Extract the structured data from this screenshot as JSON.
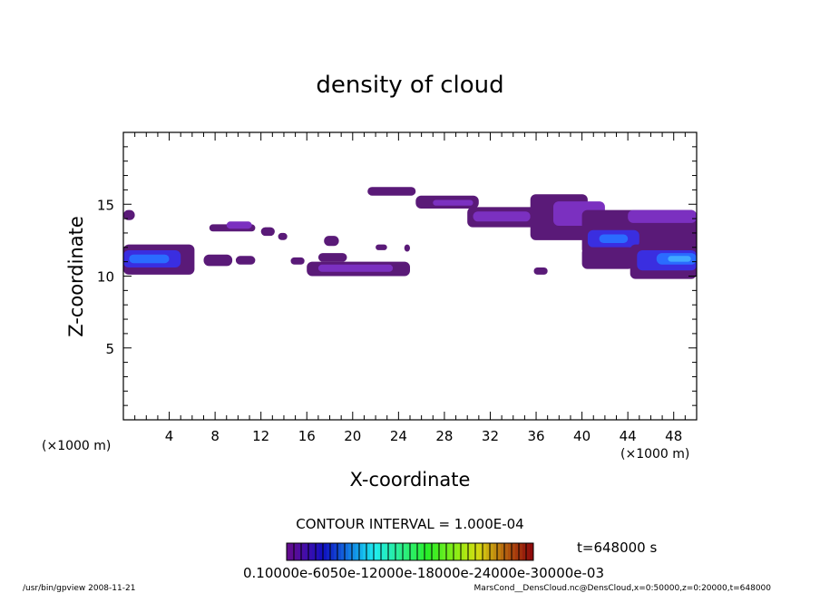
{
  "chart_data": {
    "type": "heatmap",
    "title": "density of cloud",
    "xlabel": "X-coordinate",
    "ylabel": "Z-coordinate",
    "x_unit_left": "(×1000 m)",
    "x_unit_right": "(×1000 m)",
    "xlim": [
      0,
      50
    ],
    "ylim": [
      0,
      20
    ],
    "x_ticks": [
      4,
      8,
      12,
      16,
      20,
      24,
      28,
      32,
      36,
      40,
      44,
      48
    ],
    "y_ticks": [
      5,
      10,
      15
    ],
    "contour_interval": "CONTOUR INTERVAL = 1.000E-04",
    "time_label": "t=648000 s",
    "colorbar_labels_overlapping": "0.10000e-6050e-12000e-18000e-24000e-30000e-03",
    "colors": {
      "low": "#5a1a78",
      "mid": "#7b30c0",
      "high": "#3a2ee0",
      "peak": "#2a6cff",
      "max": "#40a8ff"
    },
    "regions": [
      {
        "x0": 0,
        "x1": 1.0,
        "z0": 13.9,
        "z1": 14.6,
        "level": "low"
      },
      {
        "x0": 0,
        "x1": 6.2,
        "z0": 10.1,
        "z1": 12.2,
        "level": "low"
      },
      {
        "x0": 0,
        "x1": 5.0,
        "z0": 10.6,
        "z1": 11.8,
        "level": "high"
      },
      {
        "x0": 0.5,
        "x1": 4.0,
        "z0": 10.9,
        "z1": 11.5,
        "level": "peak"
      },
      {
        "x0": 7.0,
        "x1": 9.5,
        "z0": 10.7,
        "z1": 11.5,
        "level": "low"
      },
      {
        "x0": 9.8,
        "x1": 11.5,
        "z0": 10.8,
        "z1": 11.4,
        "level": "low"
      },
      {
        "x0": 7.5,
        "x1": 11.5,
        "z0": 13.1,
        "z1": 13.6,
        "level": "low"
      },
      {
        "x0": 9.0,
        "x1": 11.2,
        "z0": 13.3,
        "z1": 13.8,
        "level": "mid"
      },
      {
        "x0": 12.0,
        "x1": 13.2,
        "z0": 12.8,
        "z1": 13.4,
        "level": "low"
      },
      {
        "x0": 13.5,
        "x1": 14.3,
        "z0": 12.5,
        "z1": 13.0,
        "level": "low"
      },
      {
        "x0": 14.6,
        "x1": 15.8,
        "z0": 10.8,
        "z1": 11.3,
        "level": "low"
      },
      {
        "x0": 16.0,
        "x1": 25.0,
        "z0": 10.0,
        "z1": 11.0,
        "level": "low"
      },
      {
        "x0": 17.0,
        "x1": 23.5,
        "z0": 10.3,
        "z1": 10.8,
        "level": "mid"
      },
      {
        "x0": 17.0,
        "x1": 19.5,
        "z0": 11.0,
        "z1": 11.6,
        "level": "low"
      },
      {
        "x0": 17.5,
        "x1": 18.8,
        "z0": 12.1,
        "z1": 12.8,
        "level": "low"
      },
      {
        "x0": 22.0,
        "x1": 23.0,
        "z0": 11.8,
        "z1": 12.2,
        "level": "low"
      },
      {
        "x0": 24.5,
        "x1": 25.0,
        "z0": 11.7,
        "z1": 12.2,
        "level": "low"
      },
      {
        "x0": 21.3,
        "x1": 25.5,
        "z0": 15.6,
        "z1": 16.2,
        "level": "low"
      },
      {
        "x0": 25.5,
        "x1": 31.0,
        "z0": 14.7,
        "z1": 15.6,
        "level": "low"
      },
      {
        "x0": 27.0,
        "x1": 30.5,
        "z0": 14.9,
        "z1": 15.3,
        "level": "mid"
      },
      {
        "x0": 30.0,
        "x1": 36.5,
        "z0": 13.4,
        "z1": 14.8,
        "level": "low"
      },
      {
        "x0": 30.5,
        "x1": 35.5,
        "z0": 13.8,
        "z1": 14.5,
        "level": "mid"
      },
      {
        "x0": 35.8,
        "x1": 37.0,
        "z0": 10.1,
        "z1": 10.6,
        "level": "low"
      },
      {
        "x0": 35.5,
        "x1": 40.5,
        "z0": 12.5,
        "z1": 15.7,
        "level": "low"
      },
      {
        "x0": 37.5,
        "x1": 42.0,
        "z0": 13.5,
        "z1": 15.2,
        "level": "mid"
      },
      {
        "x0": 40.0,
        "x1": 50.0,
        "z0": 11.5,
        "z1": 14.6,
        "level": "low"
      },
      {
        "x0": 44.0,
        "x1": 50.0,
        "z0": 13.7,
        "z1": 14.6,
        "level": "mid"
      },
      {
        "x0": 40.5,
        "x1": 45.0,
        "z0": 12.0,
        "z1": 13.2,
        "level": "high"
      },
      {
        "x0": 41.5,
        "x1": 44.0,
        "z0": 12.3,
        "z1": 12.9,
        "level": "peak"
      },
      {
        "x0": 40.0,
        "x1": 44.5,
        "z0": 10.5,
        "z1": 12.0,
        "level": "low"
      },
      {
        "x0": 44.2,
        "x1": 50.0,
        "z0": 9.8,
        "z1": 12.2,
        "level": "low"
      },
      {
        "x0": 44.8,
        "x1": 50.0,
        "z0": 10.4,
        "z1": 11.8,
        "level": "high"
      },
      {
        "x0": 46.5,
        "x1": 50.0,
        "z0": 10.8,
        "z1": 11.6,
        "level": "peak"
      },
      {
        "x0": 47.5,
        "x1": 49.5,
        "z0": 11.0,
        "z1": 11.4,
        "level": "max"
      }
    ]
  },
  "footer": {
    "left": "/usr/bin/gpview  2008-11-21",
    "right": "MarsCond__DensCloud.nc@DensCloud,x=0:50000,z=0:20000,t=648000"
  }
}
